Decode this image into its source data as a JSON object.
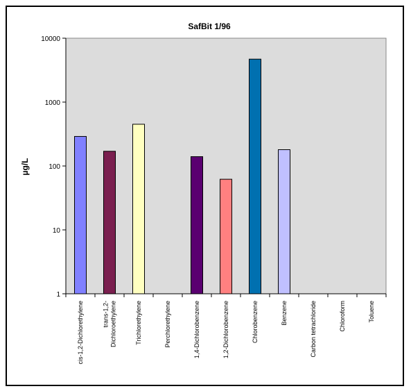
{
  "chart_data": {
    "type": "bar",
    "title": "SafBit 1/96",
    "ylabel": "µg/L",
    "xlabel": "",
    "yscale": "log",
    "ylim": [
      1,
      10000
    ],
    "yticks": [
      1,
      10,
      100,
      1000,
      10000
    ],
    "ytick_labels": [
      "1",
      "10",
      "100",
      "1000",
      "10000"
    ],
    "grid": false,
    "legend": "none",
    "plot_background": "#dcdcdc",
    "categories": [
      [
        "cis-1,2-Dichlorethylene"
      ],
      [
        "trans-1,2-",
        "Dichloroethylene"
      ],
      [
        "Trichlorethylene"
      ],
      [
        "Perchlorethylene"
      ],
      [
        "1,4-Dichlorobenzene"
      ],
      [
        "1,2-Dichlorobenzene"
      ],
      [
        "Chlorobenzene"
      ],
      [
        "Benzene"
      ],
      [
        "Carbon tetrachloride"
      ],
      [
        "Chloroform"
      ],
      [
        "Toluene"
      ]
    ],
    "values": [
      290,
      170,
      450,
      null,
      140,
      62,
      4700,
      180,
      null,
      null,
      null
    ],
    "colors": [
      "#8080ff",
      "#7a1f4f",
      "#ffffc0",
      "#ffffff",
      "#5a0070",
      "#ff8080",
      "#0070b0",
      "#c0c0ff",
      "#ffffff",
      "#ffffff",
      "#ffffff"
    ]
  }
}
